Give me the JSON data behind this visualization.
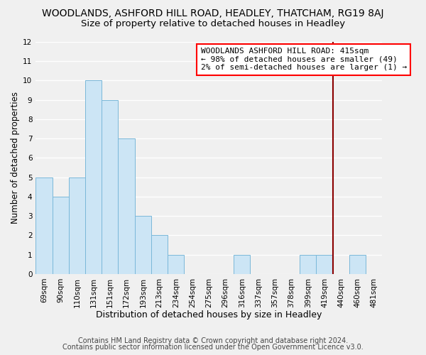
{
  "title": "WOODLANDS, ASHFORD HILL ROAD, HEADLEY, THATCHAM, RG19 8AJ",
  "subtitle": "Size of property relative to detached houses in Headley",
  "xlabel": "Distribution of detached houses by size in Headley",
  "ylabel": "Number of detached properties",
  "footer_line1": "Contains HM Land Registry data © Crown copyright and database right 2024.",
  "footer_line2": "Contains public sector information licensed under the Open Government Licence v3.0.",
  "bin_labels": [
    "69sqm",
    "90sqm",
    "110sqm",
    "131sqm",
    "151sqm",
    "172sqm",
    "193sqm",
    "213sqm",
    "234sqm",
    "254sqm",
    "275sqm",
    "296sqm",
    "316sqm",
    "337sqm",
    "357sqm",
    "378sqm",
    "399sqm",
    "419sqm",
    "440sqm",
    "460sqm",
    "481sqm"
  ],
  "bar_heights": [
    5,
    4,
    5,
    10,
    9,
    7,
    3,
    2,
    1,
    0,
    0,
    0,
    1,
    0,
    0,
    0,
    1,
    1,
    0,
    1,
    0
  ],
  "bar_color": "#cce5f5",
  "bar_edgecolor": "#7ab8d9",
  "vline_x": 17.5,
  "vline_color": "#8b0000",
  "annotation_text": "WOODLANDS ASHFORD HILL ROAD: 415sqm\n← 98% of detached houses are smaller (49)\n2% of semi-detached houses are larger (1) →",
  "annotation_box_color": "white",
  "annotation_box_edgecolor": "red",
  "ylim": [
    0,
    12
  ],
  "yticks": [
    0,
    1,
    2,
    3,
    4,
    5,
    6,
    7,
    8,
    9,
    10,
    11,
    12
  ],
  "background_color": "#f0f0f0",
  "plot_bg_color": "#f0f0f0",
  "grid_color": "#ffffff",
  "title_fontsize": 10,
  "subtitle_fontsize": 9.5,
  "xlabel_fontsize": 9,
  "ylabel_fontsize": 8.5,
  "tick_fontsize": 7.5,
  "annotation_fontsize": 8,
  "footer_fontsize": 7,
  "footer_color": "#444444"
}
